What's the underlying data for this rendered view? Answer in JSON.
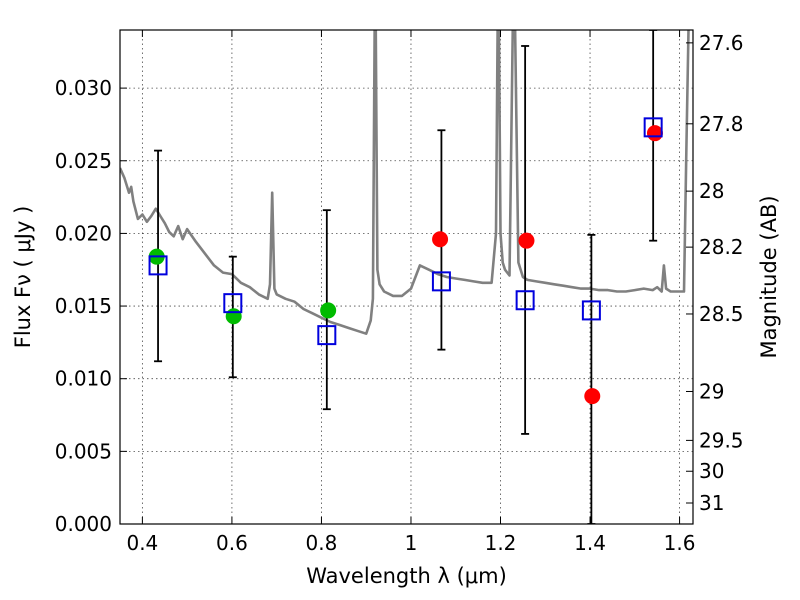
{
  "chart_data": {
    "type": "scatter",
    "title": "",
    "xlabel": "Wavelength  λ (μm)",
    "ylabel": "Flux  Fν  ( μJy )",
    "y2label": "Magnitude (AB)",
    "xlim": [
      0.35,
      1.63
    ],
    "ylim": [
      0,
      0.034
    ],
    "xticks": [
      0.4,
      0.6,
      0.8,
      1.0,
      1.2,
      1.4,
      1.6
    ],
    "xtick_labels": [
      "0.4",
      "0.6",
      "0.8",
      "1",
      "1.2",
      "1.4",
      "1.6"
    ],
    "yticks": [
      0,
      0.005,
      0.01,
      0.015,
      0.02,
      0.025,
      0.03
    ],
    "ytick_labels": [
      "0.000",
      "0.005",
      "0.010",
      "0.015",
      "0.020",
      "0.025",
      "0.030"
    ],
    "y2ticks": [
      27.6,
      27.8,
      28,
      28.2,
      28.5,
      29,
      29.5,
      30,
      31
    ],
    "y2tick_labels": [
      "27.6",
      "27.8",
      "28",
      "28.2",
      "28.5",
      "29",
      "29.5",
      "30",
      "31"
    ],
    "grid": true,
    "colors": {
      "model": "#808080",
      "green": "#00bb00",
      "red": "#ff0000",
      "square": "#0000dd",
      "errorbar": "#000000"
    },
    "model_spectrum": {
      "x": [
        0.35,
        0.36,
        0.37,
        0.375,
        0.38,
        0.39,
        0.4,
        0.41,
        0.42,
        0.43,
        0.44,
        0.45,
        0.46,
        0.47,
        0.48,
        0.49,
        0.5,
        0.52,
        0.54,
        0.56,
        0.58,
        0.6,
        0.62,
        0.64,
        0.66,
        0.68,
        0.685,
        0.69,
        0.695,
        0.7,
        0.72,
        0.74,
        0.76,
        0.78,
        0.8,
        0.82,
        0.84,
        0.86,
        0.88,
        0.9,
        0.91,
        0.915,
        0.92,
        0.925,
        0.93,
        0.94,
        0.96,
        0.98,
        1.0,
        1.02,
        1.04,
        1.06,
        1.08,
        1.1,
        1.12,
        1.14,
        1.16,
        1.18,
        1.19,
        1.195,
        1.2,
        1.205,
        1.21,
        1.22,
        1.23,
        1.24,
        1.25,
        1.26,
        1.28,
        1.3,
        1.32,
        1.34,
        1.36,
        1.38,
        1.4,
        1.42,
        1.44,
        1.46,
        1.48,
        1.5,
        1.52,
        1.54,
        1.55,
        1.56,
        1.565,
        1.57,
        1.58,
        1.6,
        1.61,
        1.615,
        1.62,
        1.63
      ],
      "y": [
        0.0245,
        0.0238,
        0.0228,
        0.0232,
        0.0222,
        0.021,
        0.0213,
        0.0208,
        0.0212,
        0.0217,
        0.0212,
        0.0207,
        0.0201,
        0.0198,
        0.0205,
        0.0196,
        0.0203,
        0.0194,
        0.0186,
        0.0178,
        0.0173,
        0.0172,
        0.0166,
        0.0163,
        0.0158,
        0.0155,
        0.0165,
        0.0228,
        0.0162,
        0.0158,
        0.0155,
        0.0153,
        0.0148,
        0.0145,
        0.0142,
        0.0139,
        0.0137,
        0.0135,
        0.0133,
        0.0131,
        0.014,
        0.0155,
        0.04,
        0.0175,
        0.0165,
        0.016,
        0.0157,
        0.0157,
        0.0162,
        0.0178,
        0.0175,
        0.0172,
        0.017,
        0.0169,
        0.0168,
        0.0167,
        0.0166,
        0.0166,
        0.02,
        0.04,
        0.02,
        0.018,
        0.0175,
        0.0171,
        0.04,
        0.018,
        0.017,
        0.0168,
        0.0167,
        0.0166,
        0.0165,
        0.0164,
        0.0163,
        0.0162,
        0.0162,
        0.0161,
        0.0161,
        0.016,
        0.016,
        0.0161,
        0.0162,
        0.0161,
        0.0163,
        0.016,
        0.0178,
        0.0162,
        0.016,
        0.016,
        0.016,
        0.0255,
        0.034,
        0.0345
      ]
    },
    "series": [
      {
        "marker": "circle",
        "color": "green",
        "x": [
          0.432,
          0.604,
          0.815
        ],
        "y": [
          0.0184,
          0.0143,
          0.0147
        ]
      },
      {
        "marker": "circle",
        "color": "red",
        "x": [
          1.065,
          1.258,
          1.405,
          1.545
        ],
        "y": [
          0.0196,
          0.0195,
          0.0088,
          0.0269
        ]
      },
      {
        "marker": "open-square",
        "color": "square",
        "x": [
          0.435,
          0.602,
          0.812,
          1.068,
          1.255,
          1.403,
          1.541
        ],
        "y": [
          0.0178,
          0.0152,
          0.013,
          0.0167,
          0.0154,
          0.0147,
          0.0273
        ],
        "yerr_low": [
          0.0112,
          0.0101,
          0.0079,
          0.012,
          0.0062,
          0.0,
          0.0195
        ],
        "yerr_high": [
          0.0257,
          0.0184,
          0.0216,
          0.0271,
          0.0329,
          0.0199,
          0.034
        ]
      }
    ]
  }
}
